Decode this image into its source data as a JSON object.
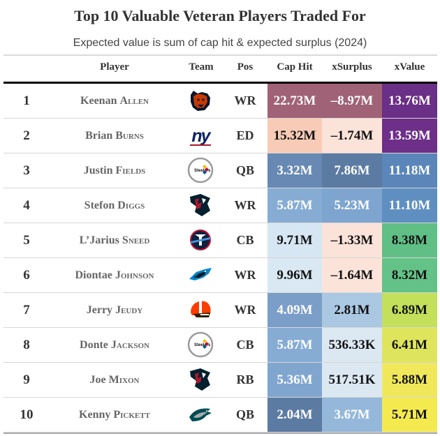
{
  "title": "Top 10 Valuable Veteran Players Traded For",
  "subtitle": "Expected value is sum of cap hit & expected surplus (2024)",
  "headers": {
    "player": "Player",
    "team": "Team",
    "pos": "Pos",
    "cap_hit": "Cap Hit",
    "xsurplus": "xSurplus",
    "xvalue": "xValue"
  },
  "rows": [
    {
      "rank": "1",
      "first": "Keenan",
      "last": "Allen",
      "team_icon": "bears-logo-icon",
      "pos": "WR",
      "cap_hit": "22.73M",
      "xsurplus": "–8.97M",
      "xvalue": "13.76M",
      "cap_bg": "#a06276",
      "cap_fg": "#ffffff",
      "sur_bg": "#a06276",
      "sur_fg": "#ffffff",
      "val_bg": "#6a2f86",
      "val_fg": "#ffffff"
    },
    {
      "rank": "2",
      "first": "Brian",
      "last": "Burns",
      "team_icon": "giants-logo-icon",
      "pos": "ED",
      "cap_hit": "15.32M",
      "xsurplus": "–1.74M",
      "xvalue": "13.59M",
      "cap_bg": "#f8cbb6",
      "cap_fg": "#111111",
      "sur_bg": "#fbe3d9",
      "sur_fg": "#111111",
      "val_bg": "#6d2f88",
      "val_fg": "#ffffff"
    },
    {
      "rank": "3",
      "first": "Justin",
      "last": "Fields",
      "team_icon": "steelers-logo-icon",
      "pos": "QB",
      "cap_hit": "3.32M",
      "xsurplus": "7.86M",
      "xvalue": "11.18M",
      "cap_bg": "#6789b3",
      "cap_fg": "#ffffff",
      "sur_bg": "#5b7ba2",
      "sur_fg": "#ffffff",
      "val_bg": "#5a86b9",
      "val_fg": "#ffffff"
    },
    {
      "rank": "4",
      "first": "Stefon",
      "last": "Diggs",
      "team_icon": "texans-logo-icon",
      "pos": "WR",
      "cap_hit": "5.87M",
      "xsurplus": "5.23M",
      "xvalue": "11.10M",
      "cap_bg": "#86acd4",
      "cap_fg": "#ffffff",
      "sur_bg": "#7ea5cf",
      "sur_fg": "#ffffff",
      "val_bg": "#5f8fc0",
      "val_fg": "#ffffff"
    },
    {
      "rank": "5",
      "first": "L’Jarius",
      "last": "Sneed",
      "team_icon": "titans-logo-icon",
      "pos": "CB",
      "cap_hit": "9.71M",
      "xsurplus": "–1.33M",
      "xvalue": "8.38M",
      "cap_bg": "#d6e6f2",
      "cap_fg": "#111111",
      "sur_bg": "#fbe3d9",
      "sur_fg": "#111111",
      "val_bg": "#5fbf85",
      "val_fg": "#111111"
    },
    {
      "rank": "6",
      "first": "Diontae",
      "last": "Johnson",
      "team_icon": "panthers-logo-icon",
      "pos": "WR",
      "cap_hit": "9.96M",
      "xsurplus": "–1.64M",
      "xvalue": "8.32M",
      "cap_bg": "#d9e8f3",
      "cap_fg": "#111111",
      "sur_bg": "#fbe3d9",
      "sur_fg": "#111111",
      "val_bg": "#63c287",
      "val_fg": "#111111"
    },
    {
      "rank": "7",
      "first": "Jerry",
      "last": "Jeudy",
      "team_icon": "browns-logo-icon",
      "pos": "WR",
      "cap_hit": "4.09M",
      "xsurplus": "2.81M",
      "xvalue": "6.89M",
      "cap_bg": "#7b9ec8",
      "cap_fg": "#ffffff",
      "sur_bg": "#aac8e2",
      "sur_fg": "#111111",
      "val_bg": "#c4e05a",
      "val_fg": "#111111"
    },
    {
      "rank": "8",
      "first": "Donte",
      "last": "Jackson",
      "team_icon": "steelers-logo-icon",
      "pos": "CB",
      "cap_hit": "5.87M",
      "xsurplus": "536.33K",
      "xvalue": "6.41M",
      "cap_bg": "#86acd4",
      "cap_fg": "#ffffff",
      "sur_bg": "#dbe8f2",
      "sur_fg": "#111111",
      "val_bg": "#dee55d",
      "val_fg": "#111111"
    },
    {
      "rank": "9",
      "first": "Joe",
      "last": "Mixon",
      "team_icon": "texans-logo-icon",
      "pos": "RB",
      "cap_hit": "5.36M",
      "xsurplus": "517.51K",
      "xvalue": "5.88M",
      "cap_bg": "#80a6cf",
      "cap_fg": "#ffffff",
      "sur_bg": "#dbe8f2",
      "sur_fg": "#111111",
      "val_bg": "#f0e85a",
      "val_fg": "#111111"
    },
    {
      "rank": "10",
      "first": "Kenny",
      "last": "Pickett",
      "team_icon": "eagles-logo-icon",
      "pos": "QB",
      "cap_hit": "2.04M",
      "xsurplus": "3.67M",
      "xvalue": "5.71M",
      "cap_bg": "#5c7ba3",
      "cap_fg": "#ffffff",
      "sur_bg": "#95b8da",
      "sur_fg": "#ffffff",
      "val_bg": "#f4ea50",
      "val_fg": "#111111"
    }
  ]
}
